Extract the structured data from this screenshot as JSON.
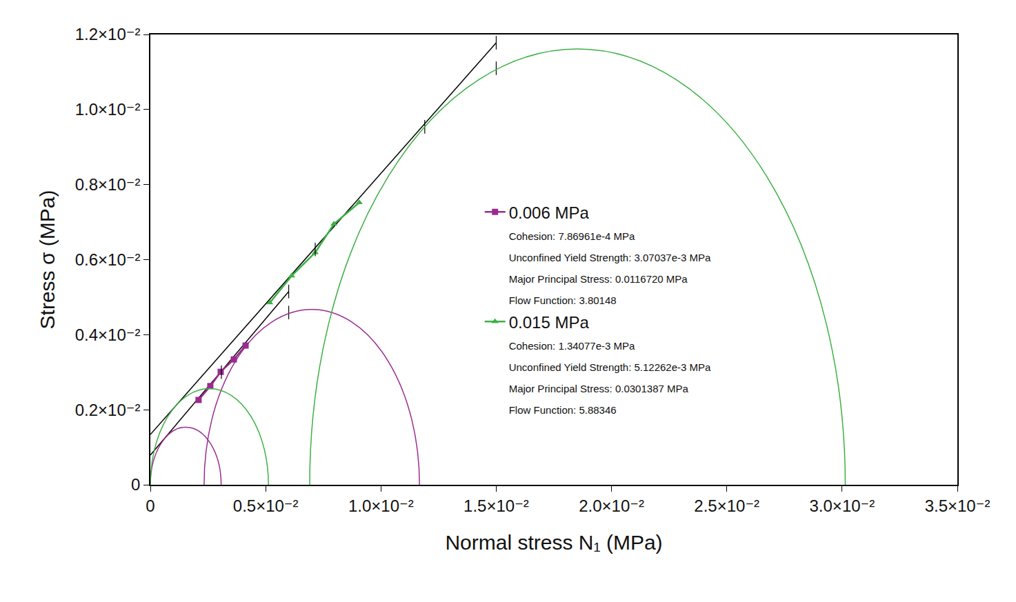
{
  "chart_data": {
    "type": "scatter",
    "x_label": "Normal stress N₁ (MPa)",
    "y_label": "Stress σ (MPa)",
    "xlim": [
      0,
      0.035
    ],
    "ylim": [
      0,
      0.012
    ],
    "xticks": [
      0,
      {
        "value": 0.005,
        "label": "0.5×10⁻²"
      },
      {
        "value": 0.01,
        "label": "1.0×10⁻²"
      },
      {
        "value": 0.015,
        "label": "1.5×10⁻²"
      },
      {
        "value": 0.02,
        "label": "2.0×10⁻²"
      },
      {
        "value": 0.025,
        "label": "2.5×10⁻²"
      },
      {
        "value": 0.03,
        "label": "3.0×10⁻²"
      },
      {
        "value": 0.035,
        "label": "3.5×10⁻²"
      }
    ],
    "yticks": [
      0,
      {
        "value": 0.002,
        "label": "0.2×10⁻²"
      },
      {
        "value": 0.004,
        "label": "0.4×10⁻²"
      },
      {
        "value": 0.006,
        "label": "0.6×10⁻²"
      },
      {
        "value": 0.008,
        "label": "0.8×10⁻²"
      },
      {
        "value": 0.01,
        "label": "1.0×10⁻²"
      },
      {
        "value": 0.012,
        "label": "1.2×10⁻²"
      }
    ],
    "grid": false,
    "legend": "center",
    "series": [
      {
        "name": "0.006 MPa",
        "color": "#9b2b8f",
        "marker": "square",
        "details": [
          "Cohesion: 7.86961e-4 MPa",
          "Unconfined Yield Strength: 3.07037e-3 MPa",
          "Major Principal Stress: 0.0116720 MPa",
          "Flow Function: 3.80148"
        ],
        "x": [
          0.00209,
          0.0026,
          0.00305,
          0.00362,
          0.00413
        ],
        "values": [
          0.00226,
          0.00263,
          0.00301,
          0.00334,
          0.00371
        ],
        "circles": [
          [
            0,
            0.00307037
          ],
          [
            0.00233,
            0.011672
          ]
        ],
        "yield_locus": {
          "x": [
            0,
            0.006
          ],
          "values": [
            0.00079,
            0.00515
          ]
        }
      },
      {
        "name": "0.015 MPa",
        "color": "#3cb043",
        "marker": "triangle",
        "details": [
          "Cohesion: 1.34077e-3 MPa",
          "Unconfined Yield Strength: 5.12262e-3 MPa",
          "Major Principal Stress: 0.0301387 MPa",
          "Flow Function: 5.88346"
        ],
        "x": [
          0.00518,
          0.00613,
          0.00715,
          0.00796,
          0.00906
        ],
        "values": [
          0.00485,
          0.00557,
          0.00619,
          0.00695,
          0.00752
        ],
        "circles": [
          [
            0,
            0.00512262
          ],
          [
            0.00691,
            0.0301387
          ]
        ],
        "yield_locus": {
          "x": [
            0,
            0.015
          ],
          "values": [
            0.00134,
            0.01178
          ]
        }
      }
    ],
    "marks": {
      "color": "#000000",
      "marker": "dash",
      "x": [
        0.006,
        0.006,
        0.015,
        0.015,
        0.0119,
        0.00715,
        0.00308
      ],
      "values": [
        0.00515,
        0.00459,
        0.01178,
        0.0111,
        0.00954,
        0.00627,
        0.003
      ]
    }
  }
}
